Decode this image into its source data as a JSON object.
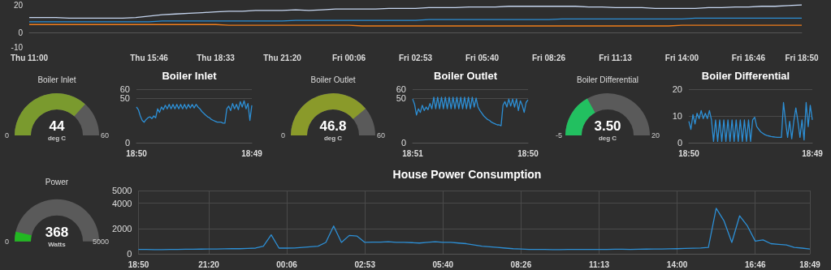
{
  "chart_data": [
    {
      "type": "line",
      "categories": [
        "Thu 11:00",
        null,
        null,
        null,
        null,
        null,
        null,
        null,
        null,
        "Thu 15:46",
        null,
        null,
        null,
        null,
        "Thu 18:33",
        null,
        null,
        null,
        null,
        "Thu 21:20",
        null,
        null,
        null,
        null,
        "Fri 00:06",
        null,
        null,
        null,
        null,
        "Fri 02:53",
        null,
        null,
        null,
        null,
        "Fri 05:40",
        null,
        null,
        null,
        null,
        "Fri 08:26",
        null,
        null,
        null,
        null,
        "Fri 11:13",
        null,
        null,
        null,
        null,
        "Fri 14:00",
        null,
        null,
        null,
        null,
        "Fri 16:46",
        null,
        null,
        null,
        "Fri 18:50"
      ],
      "series": [
        {
          "color": "#c5d5ef",
          "values": [
            11,
            11,
            11,
            10.5,
            10.5,
            10.5,
            10.5,
            10.5,
            11,
            12,
            13,
            13.5,
            14,
            14.5,
            15,
            15.5,
            15.5,
            16,
            16,
            16,
            16.5,
            16,
            16.5,
            17,
            17,
            17,
            17,
            17.5,
            17.5,
            17.5,
            18,
            18,
            18,
            18.5,
            18.5,
            18.5,
            19,
            19,
            19,
            19,
            19,
            19,
            18.5,
            18.5,
            18,
            18,
            18,
            17.5,
            17.5,
            17.5,
            17.5,
            18,
            18,
            18.5,
            18.5,
            19,
            19,
            19.5,
            20
          ]
        },
        {
          "color": "#2d8fd5",
          "values": [
            8,
            8,
            8,
            8,
            8,
            8,
            8,
            8,
            8,
            8,
            8.5,
            8.5,
            8.5,
            8.5,
            8.5,
            8.5,
            8.5,
            8.5,
            8.5,
            8.5,
            9,
            9,
            9,
            9,
            9,
            9,
            9,
            9,
            9,
            9,
            9.5,
            9.5,
            9.5,
            9.5,
            9.5,
            9.5,
            9.5,
            9.5,
            9.5,
            9.5,
            10,
            10,
            10,
            10,
            10,
            10,
            10,
            10,
            10,
            10,
            10.5,
            10.5,
            10.5,
            10.5,
            10.5,
            10.5,
            10.5,
            10.5,
            10.5
          ]
        },
        {
          "color": "#f07d1a",
          "values": [
            6,
            6,
            6,
            6,
            6,
            6,
            6,
            6,
            6,
            6,
            6,
            6,
            6,
            6,
            6,
            5.5,
            5.5,
            5.5,
            5.5,
            5.5,
            5.5,
            5.5,
            5.5,
            5.5,
            5.5,
            5,
            5,
            5,
            5,
            5,
            5,
            5,
            5,
            5,
            5,
            5,
            5,
            5,
            5,
            5,
            5,
            5,
            5,
            5,
            5,
            5,
            5,
            5,
            5,
            5.5,
            5.5,
            5.5,
            5.5,
            5.5,
            5.5,
            5.5,
            5.5,
            5.5,
            5.5
          ]
        }
      ],
      "ylim": [
        -10,
        20
      ],
      "yticks": [
        -10,
        0,
        20
      ],
      "grid": false
    },
    {
      "type": "other",
      "title": "Boiler Inlet",
      "values": [
        44,
        0,
        60
      ],
      "value_labels": [
        "44",
        "0",
        "60"
      ],
      "color": "#7a9a2e",
      "annotations": [
        "deg C"
      ]
    },
    {
      "type": "line",
      "title": "Boiler Inlet",
      "color": "#2d8fd5",
      "categories": [
        "18:50",
        null,
        null,
        null,
        null,
        null,
        null,
        null,
        null,
        null,
        null,
        null,
        null,
        null,
        null,
        null,
        null,
        null,
        null,
        null,
        null,
        null,
        null,
        null,
        null,
        null,
        null,
        null,
        null,
        null,
        null,
        null,
        null,
        null,
        null,
        null,
        null,
        null,
        null,
        null,
        null,
        null,
        null,
        null,
        null,
        null,
        null,
        null,
        null,
        null,
        null,
        null,
        null,
        null,
        null,
        null,
        null,
        null,
        null,
        null,
        "18:49"
      ],
      "values": [
        40,
        37,
        30,
        25,
        23,
        26,
        28,
        29,
        27,
        30,
        28,
        38,
        34,
        40,
        37,
        42,
        38,
        43,
        38,
        43,
        38,
        43,
        38,
        43,
        38,
        43,
        38,
        43,
        39,
        43,
        39,
        43,
        40,
        38,
        35,
        33,
        31,
        29,
        28,
        26,
        25,
        24,
        23,
        23,
        23,
        22,
        22,
        38,
        41,
        36,
        44,
        38,
        43,
        37,
        46,
        40,
        47,
        38,
        44,
        25,
        42
      ],
      "ylim": [
        0,
        60
      ],
      "yticks": [
        0,
        50,
        60
      ],
      "grid": "y"
    },
    {
      "type": "other",
      "title": "Boiler Outlet",
      "values": [
        46.8,
        0,
        60
      ],
      "value_labels": [
        "46.8",
        "0",
        "60"
      ],
      "color": "#8a9a2a",
      "annotations": [
        "deg C"
      ]
    },
    {
      "type": "line",
      "title": "Boiler Outlet",
      "color": "#2d8fd5",
      "categories": [
        "18:51",
        null,
        null,
        null,
        null,
        null,
        null,
        null,
        null,
        null,
        null,
        null,
        null,
        null,
        null,
        null,
        null,
        null,
        null,
        null,
        null,
        null,
        null,
        null,
        null,
        null,
        null,
        null,
        null,
        null,
        null,
        null,
        null,
        null,
        null,
        null,
        null,
        null,
        null,
        null,
        null,
        null,
        null,
        null,
        null,
        null,
        null,
        null,
        null,
        null,
        null,
        null,
        null,
        null,
        null,
        null,
        null,
        null,
        null,
        null,
        "18:50"
      ],
      "values": [
        49,
        43,
        31,
        38,
        34,
        42,
        36,
        40,
        37,
        44,
        38,
        51,
        38,
        51,
        38,
        51,
        38,
        51,
        38,
        51,
        38,
        51,
        38,
        51,
        38,
        51,
        38,
        51,
        38,
        51,
        38,
        51,
        40,
        50,
        40,
        36,
        33,
        30,
        28,
        26,
        25,
        23,
        22,
        21,
        20,
        20,
        19,
        42,
        46,
        40,
        49,
        41,
        49,
        40,
        49,
        36,
        47,
        42,
        34,
        45,
        48
      ],
      "ylim": [
        0,
        60
      ],
      "yticks": [
        0,
        50,
        60
      ],
      "grid": "y"
    },
    {
      "type": "other",
      "title": "Boiler Differential",
      "values": [
        3.5,
        -5,
        20
      ],
      "value_labels": [
        "3.50",
        "-5",
        "20"
      ],
      "color": "#22c060",
      "annotations": [
        "deg C"
      ]
    },
    {
      "type": "line",
      "title": "Boiler Differential",
      "color": "#2d8fd5",
      "categories": [
        "18:50",
        null,
        null,
        null,
        null,
        null,
        null,
        null,
        null,
        null,
        null,
        null,
        null,
        null,
        null,
        null,
        null,
        null,
        null,
        null,
        null,
        null,
        null,
        null,
        null,
        null,
        null,
        null,
        null,
        null,
        null,
        null,
        null,
        null,
        null,
        null,
        null,
        null,
        null,
        null,
        null,
        null,
        null,
        null,
        null,
        null,
        null,
        null,
        null,
        null,
        null,
        null,
        null,
        null,
        null,
        null,
        null,
        null,
        null,
        null,
        "18:49"
      ],
      "values": [
        8,
        5,
        10.5,
        7,
        11,
        9,
        12,
        9,
        11,
        9,
        12,
        8.5,
        0.5,
        8.5,
        0.5,
        8.5,
        0.5,
        8.5,
        0.5,
        8.5,
        0.5,
        8.5,
        0.5,
        8.5,
        0.5,
        8.5,
        0.5,
        8.5,
        0.5,
        8.5,
        0.5,
        8.5,
        9.5,
        6,
        5,
        4,
        3.5,
        3,
        2.7,
        2.5,
        2.3,
        2.2,
        2.1,
        2,
        2,
        2,
        15,
        8,
        2,
        8,
        1.5,
        8,
        13,
        8,
        2,
        8.5,
        1,
        15,
        6,
        14,
        8.5
      ],
      "ylim": [
        0,
        20
      ],
      "yticks": [
        0,
        10,
        20
      ],
      "grid": "y"
    },
    {
      "type": "other",
      "title": "Power",
      "values": [
        368,
        0,
        5000
      ],
      "value_labels": [
        "368",
        "0",
        "5000"
      ],
      "color": "#22b822",
      "annotations": [
        "Watts"
      ]
    },
    {
      "type": "line",
      "title": "House Power Consumption",
      "color": "#2d8fd5",
      "categories": [
        "18:50",
        null,
        null,
        null,
        null,
        null,
        null,
        null,
        null,
        "21:20",
        null,
        null,
        null,
        null,
        null,
        null,
        null,
        null,
        null,
        "00:06",
        null,
        null,
        null,
        null,
        null,
        null,
        null,
        null,
        null,
        "02:53",
        null,
        null,
        null,
        null,
        null,
        null,
        null,
        null,
        null,
        "05:40",
        null,
        null,
        null,
        null,
        null,
        null,
        null,
        null,
        null,
        "08:26",
        null,
        null,
        null,
        null,
        null,
        null,
        null,
        null,
        null,
        "11:13",
        null,
        null,
        null,
        null,
        null,
        null,
        null,
        null,
        null,
        "14:00",
        null,
        null,
        null,
        null,
        null,
        null,
        null,
        null,
        null,
        "16:46",
        null,
        null,
        null,
        null,
        null,
        null,
        "18:49"
      ],
      "values": [
        350,
        340,
        330,
        330,
        340,
        350,
        360,
        360,
        370,
        380,
        380,
        390,
        400,
        400,
        420,
        450,
        600,
        1500,
        450,
        450,
        460,
        500,
        550,
        600,
        900,
        2200,
        900,
        1450,
        1400,
        900,
        920,
        920,
        950,
        900,
        900,
        880,
        850,
        900,
        950,
        900,
        900,
        850,
        800,
        700,
        600,
        550,
        500,
        450,
        400,
        380,
        350,
        340,
        340,
        330,
        330,
        340,
        340,
        350,
        350,
        340,
        350,
        360,
        360,
        350,
        360,
        370,
        380,
        380,
        390,
        400,
        420,
        440,
        460,
        500,
        3600,
        2600,
        900,
        3000,
        2200,
        1000,
        1100,
        800,
        750,
        700,
        500,
        450,
        380
      ],
      "ylim": [
        0,
        5000
      ],
      "yticks": [
        0,
        2000,
        4000,
        5000
      ],
      "grid": true
    }
  ]
}
